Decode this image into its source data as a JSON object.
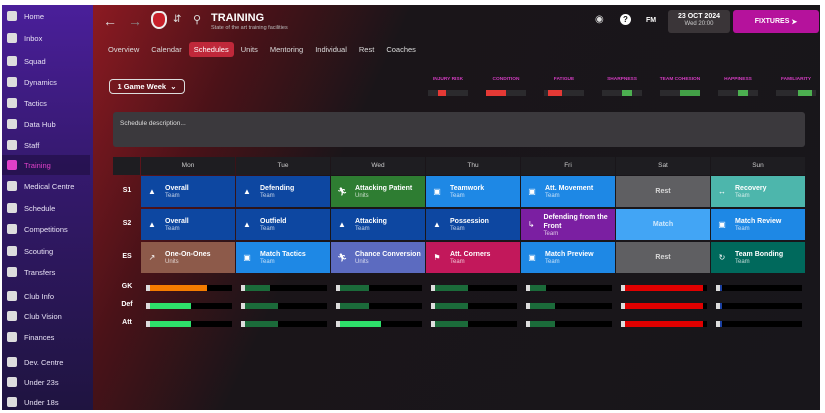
{
  "sidebar": {
    "items": [
      {
        "label": "Home",
        "icon": "home-icon"
      },
      {
        "label": "Inbox",
        "icon": "inbox-icon"
      },
      {
        "label": "Squad",
        "icon": "shirt-icon"
      },
      {
        "label": "Dynamics",
        "icon": "dynamics-icon"
      },
      {
        "label": "Tactics",
        "icon": "tactics-icon"
      },
      {
        "label": "Data Hub",
        "icon": "data-hub-icon"
      },
      {
        "label": "Staff",
        "icon": "staff-icon"
      },
      {
        "label": "Training",
        "icon": "training-cone-icon",
        "active": true
      },
      {
        "label": "Medical Centre",
        "icon": "medical-icon"
      },
      {
        "label": "Schedule",
        "icon": "calendar-icon"
      },
      {
        "label": "Competitions",
        "icon": "trophy-icon"
      },
      {
        "label": "Scouting",
        "icon": "search-icon"
      },
      {
        "label": "Transfers",
        "icon": "transfers-icon"
      },
      {
        "label": "Club Info",
        "icon": "shield-icon"
      },
      {
        "label": "Club Vision",
        "icon": "briefcase-icon"
      },
      {
        "label": "Finances",
        "icon": "money-icon"
      },
      {
        "label": "Dev. Centre",
        "icon": "dev-centre-icon"
      },
      {
        "label": "Under 23s",
        "icon": "team-icon"
      },
      {
        "label": "Under 18s",
        "icon": "team-icon"
      }
    ]
  },
  "header": {
    "title": "TRAINING",
    "subtitle": "State of the art training facilities",
    "fm": "FM",
    "date": "23 OCT 2024",
    "time": "Wed 20:00",
    "fixtures": "FIXTURES"
  },
  "tabs": [
    "Overview",
    "Calendar",
    "Schedules",
    "Units",
    "Mentoring",
    "Individual",
    "Rest",
    "Coaches"
  ],
  "active_tab": "Schedules",
  "period_select": "1 Game Week",
  "indicators": [
    {
      "label": "INJURY RISK",
      "from": 0.25,
      "to": 0.45,
      "color": "#e53935"
    },
    {
      "label": "CONDITION",
      "from": 0.0,
      "to": 0.5,
      "color": "#e53935"
    },
    {
      "label": "FATIGUE",
      "from": 0.1,
      "to": 0.45,
      "color": "#e53935"
    },
    {
      "label": "SHARPNESS",
      "from": 0.5,
      "to": 0.75,
      "color": "#4caf50"
    },
    {
      "label": "TEAM COHESION",
      "from": 0.5,
      "to": 1.0,
      "color": "#43a047"
    },
    {
      "label": "HAPPINESS",
      "from": 0.5,
      "to": 0.75,
      "color": "#4caf50"
    },
    {
      "label": "FAMILIARITY",
      "from": 0.55,
      "to": 0.9,
      "color": "#4caf50"
    }
  ],
  "description_placeholder": "Schedule description...",
  "days": [
    "Mon",
    "Tue",
    "Wed",
    "Thu",
    "Fri",
    "Sat",
    "Sun"
  ],
  "sessions": [
    {
      "label": "S1",
      "cells": [
        {
          "title": "Overall",
          "sub": "Team",
          "color": "#0d47a1",
          "icon": "cone-icon"
        },
        {
          "title": "Defending",
          "sub": "Team",
          "color": "#0d47a1",
          "icon": "cone-icon"
        },
        {
          "title": "Attacking Patient",
          "sub": "Units",
          "color": "#2e7d32",
          "icon": "runner-icon"
        },
        {
          "title": "Teamwork",
          "sub": "Team",
          "color": "#1e88e5",
          "icon": "clipboard-icon"
        },
        {
          "title": "Att. Movement",
          "sub": "Team",
          "color": "#1e88e5",
          "icon": "clipboard-icon"
        },
        {
          "title": "Rest",
          "sub": "",
          "color": "#5f5f62",
          "icon": ""
        },
        {
          "title": "Recovery",
          "sub": "Team",
          "color": "#4db6ac",
          "icon": "recovery-icon"
        }
      ]
    },
    {
      "label": "S2",
      "cells": [
        {
          "title": "Overall",
          "sub": "Team",
          "color": "#0d47a1",
          "icon": "cone-icon"
        },
        {
          "title": "Outfield",
          "sub": "Team",
          "color": "#0d47a1",
          "icon": "cone-icon"
        },
        {
          "title": "Attacking",
          "sub": "Team",
          "color": "#0d47a1",
          "icon": "cone-icon"
        },
        {
          "title": "Possession",
          "sub": "Team",
          "color": "#0d47a1",
          "icon": "cone-icon"
        },
        {
          "title": "Defending from the Front",
          "sub": "Team",
          "color": "#7b1fa2",
          "icon": "tackle-icon"
        },
        {
          "title": "Match",
          "sub": "",
          "color": "#42a5f5",
          "icon": ""
        },
        {
          "title": "Match Review",
          "sub": "Team",
          "color": "#1e88e5",
          "icon": "clipboard-icon"
        }
      ]
    },
    {
      "label": "ES",
      "cells": [
        {
          "title": "One-On-Ones",
          "sub": "Units",
          "color": "#8d5a4a",
          "icon": "shooting-icon"
        },
        {
          "title": "Match Tactics",
          "sub": "Team",
          "color": "#1e88e5",
          "icon": "clipboard-icon"
        },
        {
          "title": "Chance Conversion",
          "sub": "Units",
          "color": "#5c6bc0",
          "icon": "runner-icon"
        },
        {
          "title": "Att. Corners",
          "sub": "Team",
          "color": "#c2185b",
          "icon": "corner-flag-icon"
        },
        {
          "title": "Match Preview",
          "sub": "Team",
          "color": "#1e88e5",
          "icon": "clipboard-icon"
        },
        {
          "title": "Rest",
          "sub": "",
          "color": "#5f5f62",
          "icon": ""
        },
        {
          "title": "Team Bonding",
          "sub": "Team",
          "color": "#00695c",
          "icon": "bonding-icon"
        }
      ]
    }
  ],
  "load_rows": [
    {
      "label": "GK",
      "values": [
        0.7,
        0.3,
        0.35,
        0.4,
        0.2,
        0.95,
        0.02
      ],
      "colors": [
        "#f57c00",
        "#1b6b3a",
        "#1b6b3a",
        "#1b6b3a",
        "#1b6b3a",
        "#e00000",
        "#1a3fa0"
      ]
    },
    {
      "label": "Def",
      "values": [
        0.5,
        0.4,
        0.35,
        0.4,
        0.3,
        0.95,
        0.02
      ],
      "colors": [
        "#2ee06a",
        "#1b6b3a",
        "#1b6b3a",
        "#1b6b3a",
        "#1b6b3a",
        "#e00000",
        "#1a3fa0"
      ]
    },
    {
      "label": "Att",
      "values": [
        0.5,
        0.4,
        0.5,
        0.4,
        0.3,
        0.95,
        0.02
      ],
      "colors": [
        "#2ee06a",
        "#1b6b3a",
        "#2ee06a",
        "#1b6b3a",
        "#1b6b3a",
        "#e00000",
        "#1a3fa0"
      ]
    }
  ]
}
